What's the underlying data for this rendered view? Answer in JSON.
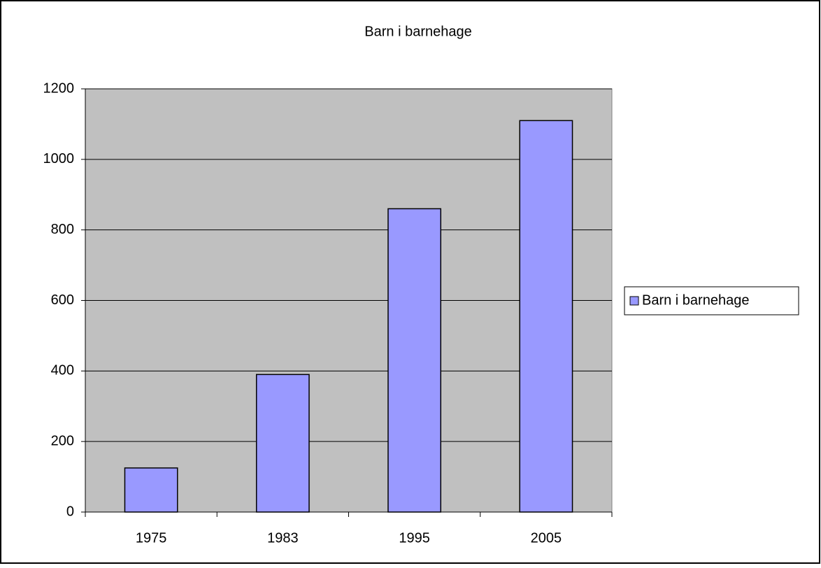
{
  "chart_data": {
    "type": "bar",
    "title": "Barn i barnehage",
    "categories": [
      "1975",
      "1983",
      "1995",
      "2005"
    ],
    "series": [
      {
        "name": "Barn i barnehage",
        "color": "#9999ff",
        "values": [
          125,
          390,
          860,
          1110
        ]
      }
    ],
    "ylim": [
      0,
      1200
    ],
    "yticks": [
      0,
      200,
      400,
      600,
      800,
      1000,
      1200
    ],
    "grid": true,
    "legend": "right",
    "plot_background": "#c0c0c0"
  }
}
